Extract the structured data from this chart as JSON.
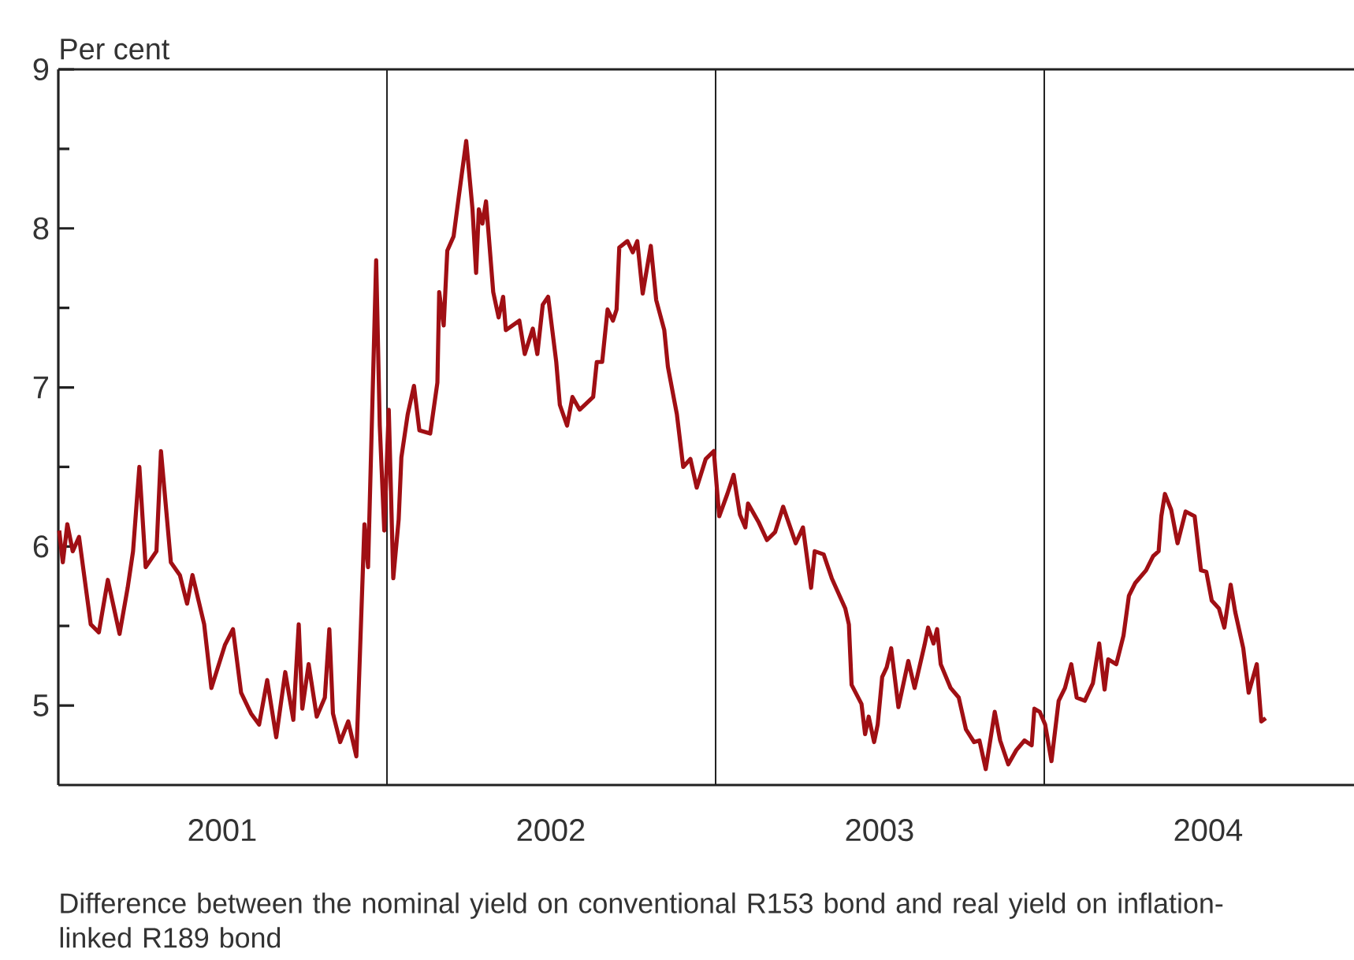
{
  "chart_data": {
    "type": "line",
    "ylabel": "Per cent",
    "annotations": [
      "Difference between the nominal yield on conventional R153 bond and real yield on inflation-linked R189 bond"
    ],
    "xlim": [
      "2001-01-01",
      "2004-12-10"
    ],
    "xticks": [
      {
        "value": "2001-07-02",
        "label": "2001"
      },
      {
        "value": "2002-07-02",
        "label": "2002"
      },
      {
        "value": "2003-07-02",
        "label": "2003"
      },
      {
        "value": "2004-07-01",
        "label": "2004"
      }
    ],
    "ylim": [
      4.5,
      9
    ],
    "yticks": [
      5,
      {
        "value": 5.5,
        "label": null
      },
      6,
      {
        "value": 6.5,
        "label": null
      },
      7,
      {
        "value": 7.5,
        "label": null
      },
      8,
      {
        "value": 8.5,
        "label": null
      },
      9
    ],
    "ref_lines": [
      {
        "axis": "x",
        "value": "2002-01-01",
        "color": "#222222"
      },
      {
        "axis": "x",
        "value": "2003-01-01",
        "color": "#222222"
      },
      {
        "axis": "x",
        "value": "2004-01-01",
        "color": "#222222"
      }
    ],
    "series": [
      {
        "color": "#a00f14",
        "x": [
          "2001-01-02",
          "2001-01-06",
          "2001-01-11",
          "2001-01-17",
          "2001-01-24",
          "2001-02-06",
          "2001-02-15",
          "2001-02-25",
          "2001-03-10",
          "2001-03-19",
          "2001-03-25",
          "2001-04-01",
          "2001-04-08",
          "2001-04-20",
          "2001-04-25",
          "2001-05-06",
          "2001-05-16",
          "2001-05-24",
          "2001-05-30",
          "2001-06-12",
          "2001-06-20",
          "2001-07-05",
          "2001-07-14",
          "2001-07-23",
          "2001-08-03",
          "2001-08-12",
          "2001-08-21",
          "2001-08-31",
          "2001-09-10",
          "2001-09-19",
          "2001-09-25",
          "2001-09-29",
          "2001-10-06",
          "2001-10-15",
          "2001-10-24",
          "2001-10-29",
          "2001-11-02",
          "2001-11-10",
          "2001-11-19",
          "2001-11-28",
          "2001-12-07",
          "2001-12-11",
          "2001-12-20",
          "2001-12-24",
          "2001-12-29",
          "2002-01-03",
          "2002-01-08",
          "2002-01-14",
          "2002-01-17",
          "2002-01-24",
          "2002-01-31",
          "2002-02-06",
          "2002-02-18",
          "2002-02-26",
          "2002-02-28",
          "2002-03-05",
          "2002-03-09",
          "2002-03-16",
          "2002-03-22",
          "2002-03-30",
          "2002-04-06",
          "2002-04-10",
          "2002-04-13",
          "2002-04-17",
          "2002-04-21",
          "2002-04-29",
          "2002-05-05",
          "2002-05-10",
          "2002-05-13",
          "2002-05-28",
          "2002-06-03",
          "2002-06-12",
          "2002-06-17",
          "2002-06-23",
          "2002-06-29",
          "2002-07-08",
          "2002-07-12",
          "2002-07-20",
          "2002-07-26",
          "2002-08-03",
          "2002-08-18",
          "2002-08-22",
          "2002-08-28",
          "2002-09-03",
          "2002-09-09",
          "2002-09-13",
          "2002-09-16",
          "2002-09-25",
          "2002-10-01",
          "2002-10-06",
          "2002-10-12",
          "2002-10-21",
          "2002-10-27",
          "2002-11-05",
          "2002-11-09",
          "2002-11-19",
          "2002-11-26",
          "2002-12-04",
          "2002-12-11",
          "2002-12-21",
          "2002-12-30",
          "2003-01-05",
          "2003-01-14",
          "2003-01-21",
          "2003-01-28",
          "2003-02-03",
          "2003-02-06",
          "2003-02-18",
          "2003-02-27",
          "2003-03-08",
          "2003-03-17",
          "2003-03-31",
          "2003-04-08",
          "2003-04-17",
          "2003-04-21",
          "2003-05-01",
          "2003-05-10",
          "2003-05-25",
          "2003-05-29",
          "2003-06-01",
          "2003-06-12",
          "2003-06-16",
          "2003-06-20",
          "2003-06-26",
          "2003-06-30",
          "2003-07-05",
          "2003-07-10",
          "2003-07-15",
          "2003-07-23",
          "2003-08-03",
          "2003-08-10",
          "2003-08-21",
          "2003-08-25",
          "2003-08-31",
          "2003-09-04",
          "2003-09-08",
          "2003-09-19",
          "2003-09-28",
          "2003-10-06",
          "2003-10-15",
          "2003-10-21",
          "2003-10-28",
          "2003-11-07",
          "2003-11-13",
          "2003-11-22",
          "2003-12-01",
          "2003-12-10",
          "2003-12-18",
          "2003-12-21",
          "2003-12-27",
          "2004-01-02",
          "2004-01-09",
          "2004-01-17",
          "2004-01-24",
          "2004-01-31",
          "2004-02-06",
          "2004-02-15",
          "2004-02-24",
          "2004-03-02",
          "2004-03-08",
          "2004-03-12",
          "2004-03-21",
          "2004-03-29",
          "2004-04-04",
          "2004-04-11",
          "2004-04-23",
          "2004-05-01",
          "2004-05-07",
          "2004-05-10",
          "2004-05-14",
          "2004-05-21",
          "2004-05-28",
          "2004-06-06",
          "2004-06-16",
          "2004-06-23",
          "2004-06-29",
          "2004-07-05",
          "2004-07-13",
          "2004-07-19",
          "2004-07-26",
          "2004-07-31",
          "2004-08-09",
          "2004-08-15",
          "2004-08-24",
          "2004-08-29",
          "2004-09-03"
        ],
        "values": [
          6.1,
          5.9,
          6.14,
          5.97,
          6.06,
          5.51,
          5.46,
          5.79,
          5.45,
          5.74,
          5.97,
          6.5,
          5.87,
          5.97,
          6.6,
          5.9,
          5.82,
          5.64,
          5.82,
          5.51,
          5.11,
          5.38,
          5.48,
          5.08,
          4.95,
          4.88,
          5.16,
          4.8,
          5.21,
          4.91,
          5.51,
          4.98,
          5.26,
          4.93,
          5.05,
          5.48,
          4.95,
          4.77,
          4.9,
          4.68,
          6.14,
          5.87,
          7.8,
          6.76,
          6.1,
          6.86,
          5.8,
          6.17,
          6.56,
          6.83,
          7.01,
          6.73,
          6.71,
          7.03,
          7.6,
          7.39,
          7.86,
          7.95,
          8.21,
          8.55,
          8.12,
          7.72,
          8.12,
          8.03,
          8.17,
          7.6,
          7.44,
          7.57,
          7.36,
          7.42,
          7.21,
          7.37,
          7.21,
          7.52,
          7.57,
          7.16,
          6.89,
          6.76,
          6.94,
          6.86,
          6.94,
          7.16,
          7.16,
          7.49,
          7.42,
          7.49,
          7.88,
          7.92,
          7.85,
          7.92,
          7.59,
          7.89,
          7.55,
          7.36,
          7.13,
          6.83,
          6.5,
          6.55,
          6.37,
          6.55,
          6.6,
          6.19,
          6.33,
          6.45,
          6.2,
          6.12,
          6.27,
          6.15,
          6.04,
          6.09,
          6.25,
          6.02,
          6.12,
          5.74,
          5.97,
          5.95,
          5.8,
          5.61,
          5.51,
          5.13,
          5.01,
          4.82,
          4.93,
          4.77,
          4.88,
          5.18,
          5.24,
          5.36,
          4.99,
          5.28,
          5.11,
          5.38,
          5.49,
          5.39,
          5.48,
          5.26,
          5.11,
          5.05,
          4.85,
          4.77,
          4.78,
          4.6,
          4.96,
          4.78,
          4.63,
          4.72,
          4.78,
          4.75,
          4.98,
          4.96,
          4.88,
          4.65,
          5.03,
          5.11,
          5.26,
          5.05,
          5.03,
          5.14,
          5.39,
          5.1,
          5.29,
          5.26,
          5.44,
          5.69,
          5.77,
          5.85,
          5.94,
          5.97,
          6.19,
          6.33,
          6.23,
          6.02,
          6.22,
          6.19,
          5.85,
          5.84,
          5.66,
          5.61,
          5.49,
          5.76,
          5.59,
          5.36,
          5.08,
          5.26,
          4.9,
          4.92
        ]
      }
    ]
  }
}
